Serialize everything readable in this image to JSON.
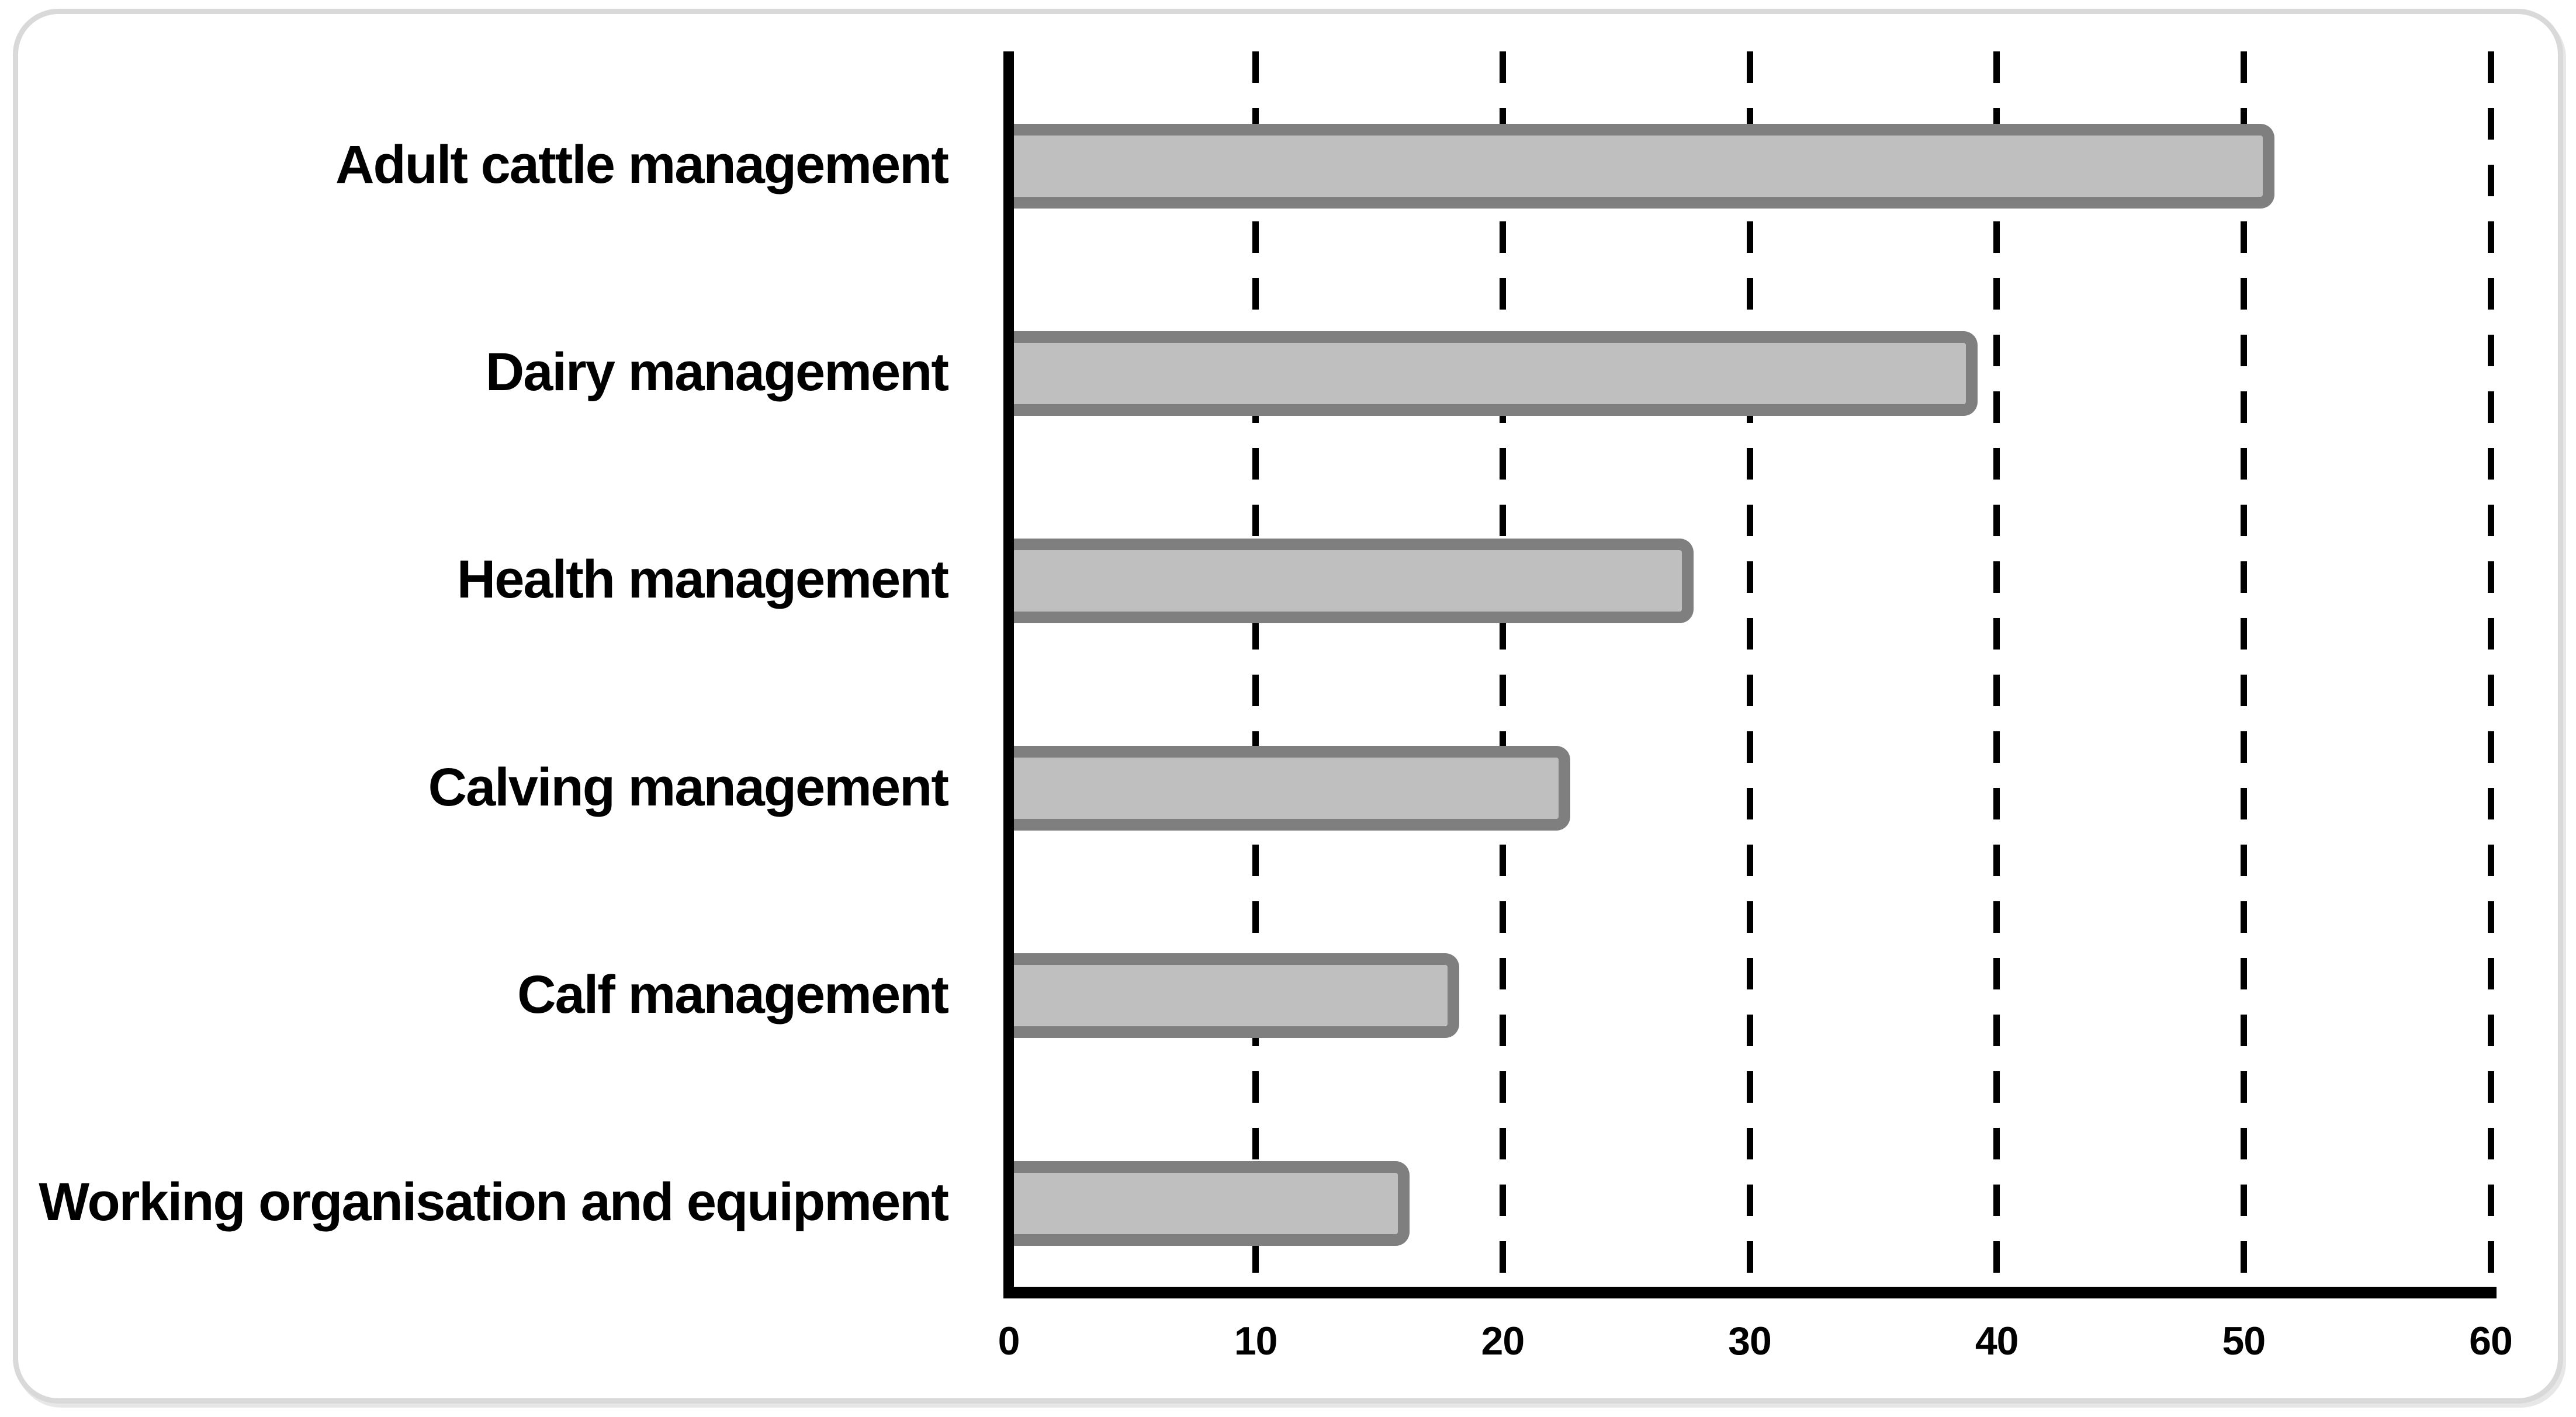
{
  "chart_data": {
    "type": "bar",
    "orientation": "horizontal",
    "title": "",
    "xlabel": "",
    "ylabel": "",
    "categories": [
      "Adult cattle management",
      "Dairy management",
      "Health management",
      "Calving management",
      "Calf management",
      "Working organisation and equipment"
    ],
    "values": [
      51,
      39,
      27.5,
      22.5,
      18,
      16
    ],
    "xlim": [
      0,
      60
    ],
    "x_ticks": [
      0,
      10,
      20,
      30,
      40,
      50,
      60
    ],
    "grid": "vertical-dashed",
    "legend": "none",
    "colors": {
      "bar_fill": "#bfbfbf",
      "bar_border": "#7f7f7f",
      "axis": "#000000",
      "gridline": "#000000",
      "text": "#000000",
      "frame_border": "#d9d9d9",
      "background": "#ffffff"
    }
  }
}
